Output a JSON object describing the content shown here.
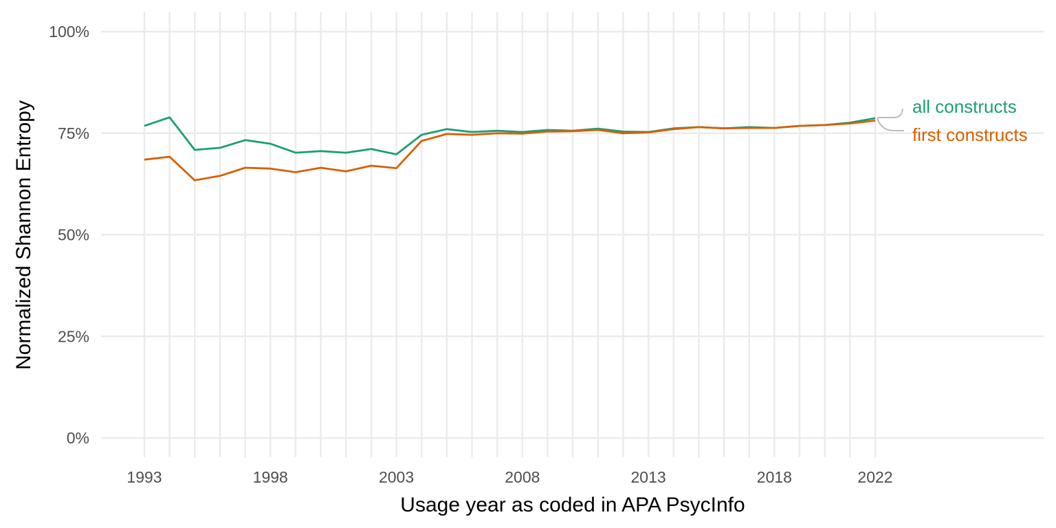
{
  "chart_data": {
    "type": "line",
    "title": "",
    "xlabel": "Usage year as coded in APA PsycInfo",
    "ylabel": "Normalized Shannon Entropy",
    "x_ticks": [
      1993,
      1998,
      2003,
      2008,
      2013,
      2018,
      2022
    ],
    "y_ticks": [
      0,
      25,
      50,
      75,
      100
    ],
    "y_tick_labels": [
      "0%",
      "25%",
      "50%",
      "75%",
      "100%"
    ],
    "xlim": [
      1993,
      2022
    ],
    "ylim": [
      0,
      100
    ],
    "grid": true,
    "legend": "direct labels at right end of lines",
    "x": [
      1993,
      1994,
      1995,
      1996,
      1997,
      1998,
      1999,
      2000,
      2001,
      2002,
      2003,
      2004,
      2005,
      2006,
      2007,
      2008,
      2009,
      2010,
      2011,
      2012,
      2013,
      2014,
      2015,
      2016,
      2017,
      2018,
      2019,
      2020,
      2021,
      2022
    ],
    "series": [
      {
        "name": "all constructs",
        "color": "#1b9e77",
        "values": [
          76.8,
          78.9,
          70.9,
          71.4,
          73.3,
          72.4,
          70.2,
          70.6,
          70.2,
          71.1,
          69.8,
          74.6,
          76.0,
          75.3,
          75.6,
          75.3,
          75.8,
          75.6,
          76.1,
          75.4,
          75.3,
          76.2,
          76.5,
          76.2,
          76.5,
          76.3,
          76.8,
          77.0,
          77.6,
          78.7
        ]
      },
      {
        "name": "first constructs",
        "color": "#d95f02",
        "values": [
          68.5,
          69.2,
          63.4,
          64.5,
          66.5,
          66.3,
          65.4,
          66.5,
          65.6,
          67.0,
          66.4,
          73.1,
          74.8,
          74.6,
          75.0,
          74.9,
          75.4,
          75.5,
          75.8,
          75.0,
          75.2,
          76.0,
          76.5,
          76.2,
          76.3,
          76.3,
          76.8,
          77.0,
          77.4,
          78.1
        ]
      }
    ]
  }
}
